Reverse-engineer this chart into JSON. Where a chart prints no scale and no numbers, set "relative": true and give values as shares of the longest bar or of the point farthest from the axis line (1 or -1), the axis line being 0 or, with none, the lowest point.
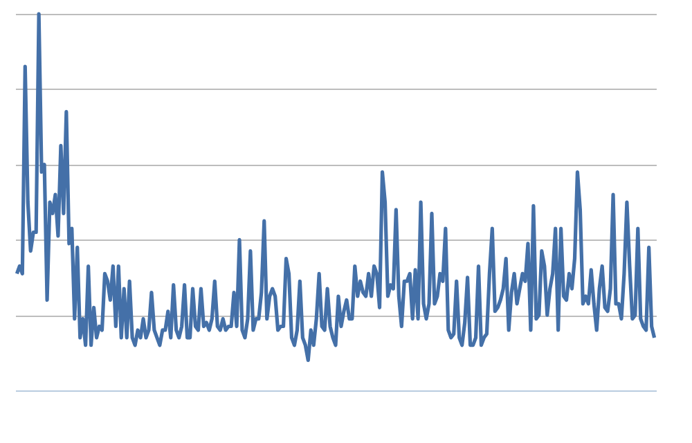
{
  "chart_data": {
    "type": "line",
    "relative": true,
    "grid": "y",
    "legend": false,
    "marker": "none",
    "line_style": "solid",
    "categories": [
      null,
      null,
      null,
      null,
      null,
      null,
      null,
      null,
      null,
      null,
      null,
      null,
      null,
      null,
      null,
      null,
      null,
      null,
      null,
      null,
      null,
      null,
      null,
      null,
      null,
      null,
      null,
      null,
      null,
      null,
      null,
      null,
      null,
      null,
      null,
      null,
      null,
      null,
      null,
      null,
      null,
      null,
      null,
      null,
      null,
      null,
      null,
      null,
      null,
      null,
      null,
      null,
      null,
      null,
      null,
      null,
      null,
      null,
      null,
      null,
      null,
      null,
      null,
      null,
      null,
      null,
      null,
      null,
      null,
      null,
      null,
      null,
      null,
      null,
      null,
      null,
      null,
      null,
      null,
      null,
      null,
      null,
      null,
      null,
      null,
      null,
      null,
      null,
      null,
      null,
      null,
      null,
      null,
      null,
      null,
      null,
      null,
      null,
      null,
      null,
      null,
      null,
      null,
      null,
      null,
      null,
      null,
      null,
      null,
      null,
      null,
      null,
      null,
      null,
      null,
      null,
      null,
      null,
      null,
      null,
      null,
      null,
      null,
      null,
      null,
      null,
      null,
      null,
      null,
      null,
      null,
      null,
      null,
      null,
      null,
      null,
      null,
      null,
      null,
      null,
      null,
      null,
      null,
      null,
      null,
      null,
      null,
      null,
      null,
      null,
      null,
      null,
      null,
      null,
      null,
      null,
      null,
      null,
      null,
      null,
      null,
      null,
      null,
      null,
      null,
      null,
      null,
      null,
      null,
      null,
      null,
      null,
      null,
      null,
      null,
      null,
      null,
      null,
      null,
      null,
      null,
      null,
      null,
      null,
      null,
      null,
      null,
      null,
      null,
      null,
      null,
      null,
      null,
      null,
      null,
      null,
      null,
      null,
      null,
      null,
      null,
      null,
      null,
      null,
      null,
      null,
      null,
      null,
      null,
      null,
      null,
      null,
      null,
      null,
      null,
      null,
      null,
      null,
      null,
      null,
      null,
      null,
      null,
      null,
      null,
      null,
      null,
      null,
      null,
      null,
      null,
      null,
      null
    ],
    "series": [
      {
        "color": "#4470a8",
        "values": [
          0.31,
          0.33,
          0.31,
          0.86,
          0.5,
          0.37,
          0.42,
          0.42,
          1,
          0.58,
          0.6,
          0.24,
          0.5,
          0.47,
          0.52,
          0.41,
          0.65,
          0.47,
          0.74,
          0.39,
          0.43,
          0.19,
          0.38,
          0.14,
          0.19,
          0.12,
          0.33,
          0.12,
          0.22,
          0.14,
          0.17,
          0.16,
          0.31,
          0.29,
          0.24,
          0.33,
          0.17,
          0.33,
          0.14,
          0.27,
          0.14,
          0.29,
          0.14,
          0.12,
          0.16,
          0.14,
          0.19,
          0.14,
          0.16,
          0.26,
          0.16,
          0.14,
          0.12,
          0.16,
          0.16,
          0.21,
          0.14,
          0.28,
          0.16,
          0.14,
          0.17,
          0.28,
          0.14,
          0.14,
          0.27,
          0.17,
          0.16,
          0.27,
          0.17,
          0.18,
          0.16,
          0.19,
          0.29,
          0.17,
          0.16,
          0.19,
          0.16,
          0.17,
          0.17,
          0.26,
          0.17,
          0.4,
          0.16,
          0.14,
          0.19,
          0.37,
          0.16,
          0.19,
          0.19,
          0.26,
          0.45,
          0.19,
          0.25,
          0.27,
          0.25,
          0.16,
          0.17,
          0.17,
          0.35,
          0.31,
          0.14,
          0.12,
          0.16,
          0.29,
          0.14,
          0.12,
          0.08,
          0.16,
          0.12,
          0.19,
          0.31,
          0.17,
          0.16,
          0.27,
          0.17,
          0.14,
          0.12,
          0.25,
          0.17,
          0.21,
          0.24,
          0.19,
          0.19,
          0.33,
          0.25,
          0.29,
          0.26,
          0.25,
          0.31,
          0.25,
          0.33,
          0.31,
          0.22,
          0.58,
          0.5,
          0.25,
          0.28,
          0.27,
          0.48,
          0.25,
          0.17,
          0.29,
          0.29,
          0.31,
          0.19,
          0.32,
          0.19,
          0.5,
          0.23,
          0.19,
          0.23,
          0.47,
          0.23,
          0.25,
          0.31,
          0.29,
          0.43,
          0.16,
          0.14,
          0.15,
          0.29,
          0.14,
          0.12,
          0.18,
          0.3,
          0.12,
          0.12,
          0.14,
          0.33,
          0.12,
          0.14,
          0.15,
          0.31,
          0.43,
          0.21,
          0.22,
          0.24,
          0.27,
          0.35,
          0.16,
          0.26,
          0.31,
          0.23,
          0.27,
          0.31,
          0.29,
          0.39,
          0.16,
          0.49,
          0.19,
          0.2,
          0.37,
          0.33,
          0.2,
          0.27,
          0.31,
          0.43,
          0.16,
          0.43,
          0.25,
          0.24,
          0.31,
          0.27,
          0.35,
          0.58,
          0.48,
          0.23,
          0.25,
          0.23,
          0.32,
          0.23,
          0.16,
          0.27,
          0.33,
          0.22,
          0.21,
          0.27,
          0.52,
          0.23,
          0.23,
          0.19,
          0.31,
          0.5,
          0.33,
          0.19,
          0.2,
          0.43,
          0.19,
          0.17,
          0.16,
          0.38,
          0.17,
          0.14
        ]
      }
    ]
  }
}
